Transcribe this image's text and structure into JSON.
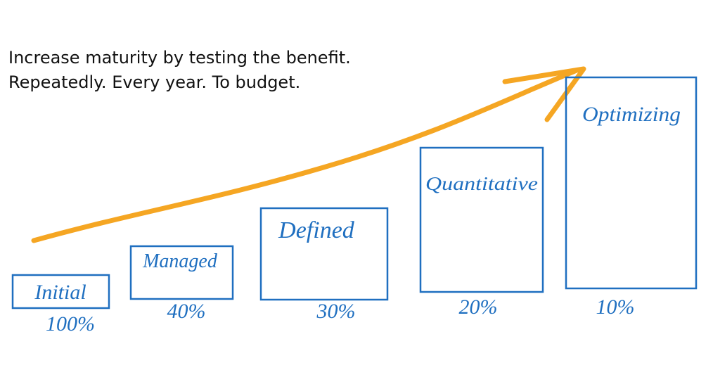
{
  "header": {
    "lines": [
      "Increase maturity by testing the benefit.",
      "Repeatedly. Every year. To budget."
    ]
  },
  "stages": [
    {
      "label": "Initial",
      "percent": "100%"
    },
    {
      "label": "Managed",
      "percent": "40%"
    },
    {
      "label": "Defined",
      "percent": "30%"
    },
    {
      "label": "Quantitative",
      "percent": "20%"
    },
    {
      "label": "Optimizing",
      "percent": "10%"
    }
  ]
}
